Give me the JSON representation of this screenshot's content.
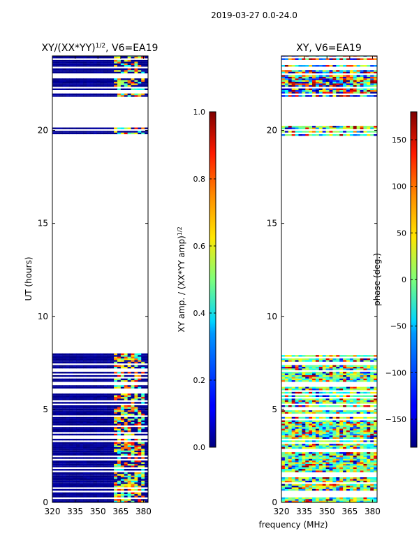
{
  "suptitle": "2019-03-27 0.0-24.0",
  "xlabel_shared": "frequency (MHz)",
  "chart_data": [
    {
      "type": "heatmap",
      "title_main": "XY/(XX*YY)",
      "title_sup": "1/2",
      "title_rest": ", V6=EA19",
      "ylabel": "UT (hours)",
      "xlim": [
        320,
        383
      ],
      "ylim": [
        0,
        24
      ],
      "xticks": [
        320,
        335,
        350,
        365,
        380
      ],
      "yticks": [
        0,
        5,
        10,
        15,
        20
      ],
      "data_bands": [
        [
          0,
          8.0
        ],
        [
          19.7,
          20.2
        ],
        [
          21.8,
          24
        ]
      ],
      "colorbar": {
        "label_main": "XY amp. / (XX*YY amp)",
        "label_sup": "1/2",
        "range": [
          0.0,
          1.0
        ],
        "ticks": [
          "0.0",
          "0.2",
          "0.4",
          "0.6",
          "0.8",
          "1.0"
        ],
        "tick_values": [
          0.0,
          0.2,
          0.4,
          0.6,
          0.8,
          1.0
        ],
        "colormap": "jet"
      }
    },
    {
      "type": "heatmap",
      "title": "XY, V6=EA19",
      "xlim": [
        320,
        383
      ],
      "ylim": [
        0,
        24
      ],
      "xticks": [
        320,
        335,
        350,
        365,
        380
      ],
      "yticks": [
        0,
        5,
        10,
        15,
        20
      ],
      "data_bands": [
        [
          0,
          7.9
        ],
        [
          19.7,
          20.2
        ],
        [
          21.8,
          24
        ]
      ],
      "colorbar": {
        "label": "phase (deg.)",
        "range": [
          -180,
          180
        ],
        "ticks": [
          "−150",
          "−100",
          "−50",
          "0",
          "50",
          "100",
          "150"
        ],
        "tick_values": [
          -150,
          -100,
          -50,
          0,
          50,
          100,
          150
        ],
        "colormap": "jet"
      }
    }
  ]
}
